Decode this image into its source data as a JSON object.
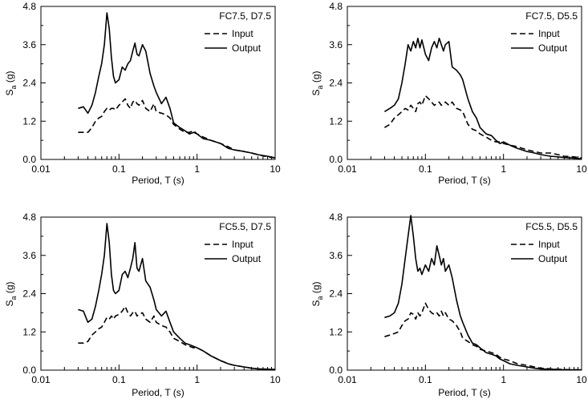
{
  "chart_data": [
    {
      "type": "line",
      "title": "",
      "annotation": "FC7.5, D7.5",
      "xlabel": "Period, T (s)",
      "ylabel": "S",
      "ylabel_sub": "a",
      "ylabel_unit": " (g)",
      "xscale": "log",
      "xlim": [
        0.01,
        10
      ],
      "ylim": [
        0,
        4.8
      ],
      "xticks": [
        "0.01",
        "0.1",
        "1",
        "10"
      ],
      "yticks": [
        "0.0",
        "1.2",
        "2.4",
        "3.6",
        "4.8"
      ],
      "legend_position": "top-right",
      "series": [
        {
          "name": "Input",
          "style": "dashed",
          "x": [
            0.03,
            0.035,
            0.04,
            0.045,
            0.05,
            0.055,
            0.06,
            0.065,
            0.07,
            0.075,
            0.08,
            0.085,
            0.09,
            0.1,
            0.11,
            0.12,
            0.13,
            0.14,
            0.15,
            0.16,
            0.17,
            0.18,
            0.2,
            0.22,
            0.25,
            0.28,
            0.3,
            0.35,
            0.4,
            0.45,
            0.5,
            0.6,
            0.7,
            0.8,
            0.9,
            1.0,
            1.2,
            1.5,
            2,
            2.5,
            3,
            4,
            5,
            6,
            8,
            10
          ],
          "y": [
            0.85,
            0.85,
            0.85,
            1.0,
            1.2,
            1.3,
            1.35,
            1.5,
            1.6,
            1.55,
            1.6,
            1.6,
            1.55,
            1.7,
            1.8,
            1.9,
            1.7,
            1.6,
            1.8,
            1.85,
            1.75,
            1.7,
            1.85,
            1.6,
            1.5,
            1.75,
            1.5,
            1.45,
            1.4,
            1.3,
            1.1,
            0.95,
            0.85,
            0.85,
            0.9,
            0.8,
            0.7,
            0.6,
            0.5,
            0.4,
            0.3,
            0.25,
            0.2,
            0.15,
            0.08,
            0.05
          ]
        },
        {
          "name": "Output",
          "style": "solid",
          "x": [
            0.03,
            0.035,
            0.04,
            0.045,
            0.05,
            0.055,
            0.06,
            0.065,
            0.07,
            0.075,
            0.08,
            0.085,
            0.09,
            0.1,
            0.11,
            0.12,
            0.13,
            0.14,
            0.15,
            0.16,
            0.17,
            0.18,
            0.2,
            0.22,
            0.25,
            0.28,
            0.3,
            0.35,
            0.4,
            0.45,
            0.5,
            0.6,
            0.7,
            0.8,
            0.9,
            1.0,
            1.2,
            1.5,
            2,
            2.5,
            3,
            4,
            5,
            6,
            8,
            10
          ],
          "y": [
            1.6,
            1.65,
            1.45,
            1.7,
            2.1,
            2.6,
            3.0,
            3.6,
            4.6,
            4.1,
            3.2,
            2.6,
            2.4,
            2.5,
            2.9,
            2.8,
            3.0,
            3.1,
            3.4,
            3.65,
            3.3,
            3.25,
            3.6,
            3.4,
            2.7,
            2.3,
            2.1,
            1.75,
            1.95,
            1.6,
            1.15,
            1.0,
            0.9,
            0.8,
            0.85,
            0.8,
            0.65,
            0.6,
            0.5,
            0.35,
            0.3,
            0.25,
            0.2,
            0.15,
            0.1,
            0.05
          ]
        }
      ]
    },
    {
      "type": "line",
      "title": "",
      "annotation": "FC7.5, D5.5",
      "xlabel": "Period, T (s)",
      "ylabel": "S",
      "ylabel_sub": "a",
      "ylabel_unit": " (g)",
      "xscale": "log",
      "xlim": [
        0.01,
        10
      ],
      "ylim": [
        0,
        4.8
      ],
      "xticks": [
        "0.01",
        "0.1",
        "1",
        "10"
      ],
      "yticks": [
        "0.0",
        "1.2",
        "2.4",
        "3.6",
        "4.8"
      ],
      "legend_position": "top-right",
      "series": [
        {
          "name": "Input",
          "style": "dashed",
          "x": [
            0.03,
            0.035,
            0.04,
            0.045,
            0.05,
            0.055,
            0.06,
            0.065,
            0.07,
            0.075,
            0.08,
            0.085,
            0.09,
            0.1,
            0.11,
            0.12,
            0.13,
            0.14,
            0.15,
            0.16,
            0.17,
            0.18,
            0.2,
            0.22,
            0.25,
            0.28,
            0.3,
            0.35,
            0.4,
            0.45,
            0.5,
            0.6,
            0.7,
            0.8,
            0.9,
            1.0,
            1.2,
            1.5,
            2,
            2.5,
            3,
            4,
            5,
            6,
            8,
            10
          ],
          "y": [
            1.0,
            1.1,
            1.3,
            1.4,
            1.5,
            1.6,
            1.55,
            1.7,
            1.6,
            1.5,
            1.75,
            1.8,
            1.7,
            2.0,
            1.9,
            1.8,
            1.7,
            1.75,
            1.8,
            1.7,
            1.75,
            1.8,
            1.7,
            1.8,
            1.6,
            1.55,
            1.5,
            1.1,
            0.95,
            0.9,
            0.8,
            0.7,
            0.6,
            0.55,
            0.55,
            0.5,
            0.45,
            0.4,
            0.3,
            0.25,
            0.2,
            0.2,
            0.15,
            0.1,
            0.08,
            0.05
          ]
        },
        {
          "name": "Output",
          "style": "solid",
          "x": [
            0.03,
            0.035,
            0.04,
            0.045,
            0.05,
            0.055,
            0.06,
            0.065,
            0.07,
            0.075,
            0.08,
            0.085,
            0.09,
            0.1,
            0.11,
            0.12,
            0.13,
            0.14,
            0.15,
            0.16,
            0.17,
            0.18,
            0.2,
            0.22,
            0.25,
            0.28,
            0.3,
            0.35,
            0.4,
            0.45,
            0.5,
            0.6,
            0.7,
            0.8,
            0.9,
            1.0,
            1.2,
            1.5,
            2,
            2.5,
            3,
            4,
            5,
            6,
            8,
            10
          ],
          "y": [
            1.5,
            1.6,
            1.7,
            1.9,
            2.4,
            3.0,
            3.6,
            3.4,
            3.7,
            3.5,
            3.8,
            3.5,
            3.75,
            3.3,
            3.1,
            3.5,
            3.7,
            3.5,
            3.8,
            3.6,
            3.4,
            3.6,
            3.7,
            2.9,
            2.8,
            2.65,
            2.5,
            1.9,
            1.5,
            1.3,
            1.0,
            0.8,
            0.75,
            0.6,
            0.5,
            0.55,
            0.45,
            0.35,
            0.25,
            0.2,
            0.15,
            0.1,
            0.08,
            0.06,
            0.04,
            0.02
          ]
        }
      ]
    },
    {
      "type": "line",
      "title": "",
      "annotation": "FC5.5, D7.5",
      "xlabel": "Period, T (s)",
      "ylabel": "S",
      "ylabel_sub": "a",
      "ylabel_unit": " (g)",
      "xscale": "log",
      "xlim": [
        0.01,
        10
      ],
      "ylim": [
        0,
        4.8
      ],
      "xticks": [
        "0.01",
        "0.1",
        "1",
        "10"
      ],
      "yticks": [
        "0.0",
        "1.2",
        "2.4",
        "3.6",
        "4.8"
      ],
      "legend_position": "top-right",
      "series": [
        {
          "name": "Input",
          "style": "dashed",
          "x": [
            0.03,
            0.035,
            0.04,
            0.045,
            0.05,
            0.055,
            0.06,
            0.065,
            0.07,
            0.075,
            0.08,
            0.085,
            0.09,
            0.1,
            0.11,
            0.12,
            0.13,
            0.14,
            0.15,
            0.16,
            0.17,
            0.18,
            0.2,
            0.22,
            0.25,
            0.28,
            0.3,
            0.35,
            0.4,
            0.45,
            0.5,
            0.6,
            0.7,
            0.8,
            0.9,
            1.0,
            1.2,
            1.5,
            2,
            2.5,
            3,
            4,
            5,
            6,
            8,
            10
          ],
          "y": [
            0.85,
            0.85,
            0.9,
            1.1,
            1.2,
            1.3,
            1.35,
            1.5,
            1.65,
            1.6,
            1.7,
            1.6,
            1.7,
            1.75,
            1.85,
            2.0,
            1.8,
            1.7,
            1.8,
            1.85,
            1.7,
            1.75,
            1.8,
            1.6,
            1.5,
            1.7,
            1.5,
            1.4,
            1.35,
            1.2,
            1.0,
            0.9,
            0.8,
            0.75,
            0.7,
            0.7,
            0.6,
            0.45,
            0.3,
            0.2,
            0.15,
            0.1,
            0.06,
            0.04,
            0.03,
            0.02
          ]
        },
        {
          "name": "Output",
          "style": "solid",
          "x": [
            0.03,
            0.035,
            0.04,
            0.045,
            0.05,
            0.055,
            0.06,
            0.065,
            0.07,
            0.075,
            0.08,
            0.085,
            0.09,
            0.1,
            0.11,
            0.12,
            0.13,
            0.14,
            0.15,
            0.16,
            0.17,
            0.18,
            0.2,
            0.22,
            0.25,
            0.28,
            0.3,
            0.35,
            0.4,
            0.45,
            0.5,
            0.6,
            0.7,
            0.8,
            0.9,
            1.0,
            1.2,
            1.5,
            2,
            2.5,
            3,
            4,
            5,
            6,
            8,
            10
          ],
          "y": [
            1.9,
            1.85,
            1.5,
            1.6,
            2.0,
            2.5,
            3.0,
            3.6,
            4.6,
            4.0,
            3.0,
            2.5,
            2.4,
            2.5,
            3.0,
            3.1,
            2.9,
            3.2,
            3.5,
            4.0,
            3.2,
            3.1,
            3.5,
            2.8,
            2.6,
            2.2,
            1.9,
            1.7,
            1.85,
            1.5,
            1.2,
            1.0,
            0.85,
            0.8,
            0.75,
            0.7,
            0.6,
            0.45,
            0.3,
            0.2,
            0.15,
            0.1,
            0.06,
            0.04,
            0.03,
            0.02
          ]
        }
      ]
    },
    {
      "type": "line",
      "title": "",
      "annotation": "FC5.5, D5.5",
      "xlabel": "Period, T (s)",
      "ylabel": "S",
      "ylabel_sub": "a",
      "ylabel_unit": " (g)",
      "xscale": "log",
      "xlim": [
        0.01,
        10
      ],
      "ylim": [
        0,
        4.8
      ],
      "xticks": [
        "0.01",
        "0.1",
        "1",
        "10"
      ],
      "yticks": [
        "0.0",
        "1.2",
        "2.4",
        "3.6",
        "4.8"
      ],
      "legend_position": "top-right",
      "series": [
        {
          "name": "Input",
          "style": "dashed",
          "x": [
            0.03,
            0.035,
            0.04,
            0.045,
            0.05,
            0.055,
            0.06,
            0.065,
            0.07,
            0.075,
            0.08,
            0.085,
            0.09,
            0.1,
            0.11,
            0.12,
            0.13,
            0.14,
            0.15,
            0.16,
            0.17,
            0.18,
            0.2,
            0.22,
            0.25,
            0.28,
            0.3,
            0.35,
            0.4,
            0.45,
            0.5,
            0.6,
            0.7,
            0.8,
            0.9,
            1.0,
            1.2,
            1.5,
            2,
            2.5,
            3,
            4,
            5,
            6,
            8,
            10
          ],
          "y": [
            1.05,
            1.1,
            1.15,
            1.2,
            1.4,
            1.55,
            1.6,
            1.8,
            1.75,
            1.6,
            1.8,
            1.7,
            1.8,
            2.1,
            1.9,
            1.8,
            1.75,
            1.8,
            1.7,
            1.85,
            1.7,
            1.8,
            1.6,
            1.55,
            1.4,
            1.2,
            1.0,
            0.9,
            0.8,
            0.75,
            0.65,
            0.6,
            0.55,
            0.5,
            0.4,
            0.35,
            0.3,
            0.2,
            0.15,
            0.1,
            0.06,
            0.04,
            0.03,
            0.02,
            0.01,
            0.01
          ]
        },
        {
          "name": "Output",
          "style": "solid",
          "x": [
            0.03,
            0.035,
            0.04,
            0.045,
            0.05,
            0.055,
            0.06,
            0.065,
            0.07,
            0.075,
            0.08,
            0.085,
            0.09,
            0.1,
            0.11,
            0.12,
            0.13,
            0.14,
            0.15,
            0.16,
            0.17,
            0.18,
            0.2,
            0.22,
            0.25,
            0.28,
            0.3,
            0.35,
            0.4,
            0.45,
            0.5,
            0.6,
            0.7,
            0.8,
            0.9,
            1.0,
            1.2,
            1.5,
            2,
            2.5,
            3,
            4,
            5,
            6,
            8,
            10
          ],
          "y": [
            1.65,
            1.7,
            1.8,
            2.1,
            2.7,
            3.5,
            4.2,
            4.85,
            4.2,
            3.5,
            3.1,
            3.2,
            3.0,
            3.3,
            3.1,
            3.5,
            3.3,
            3.9,
            3.6,
            3.3,
            3.5,
            3.1,
            3.3,
            2.9,
            2.2,
            1.7,
            1.5,
            1.1,
            0.85,
            0.8,
            0.7,
            0.55,
            0.5,
            0.45,
            0.35,
            0.3,
            0.2,
            0.15,
            0.1,
            0.06,
            0.04,
            0.03,
            0.02,
            0.01,
            0.01,
            0.01
          ]
        }
      ]
    }
  ]
}
